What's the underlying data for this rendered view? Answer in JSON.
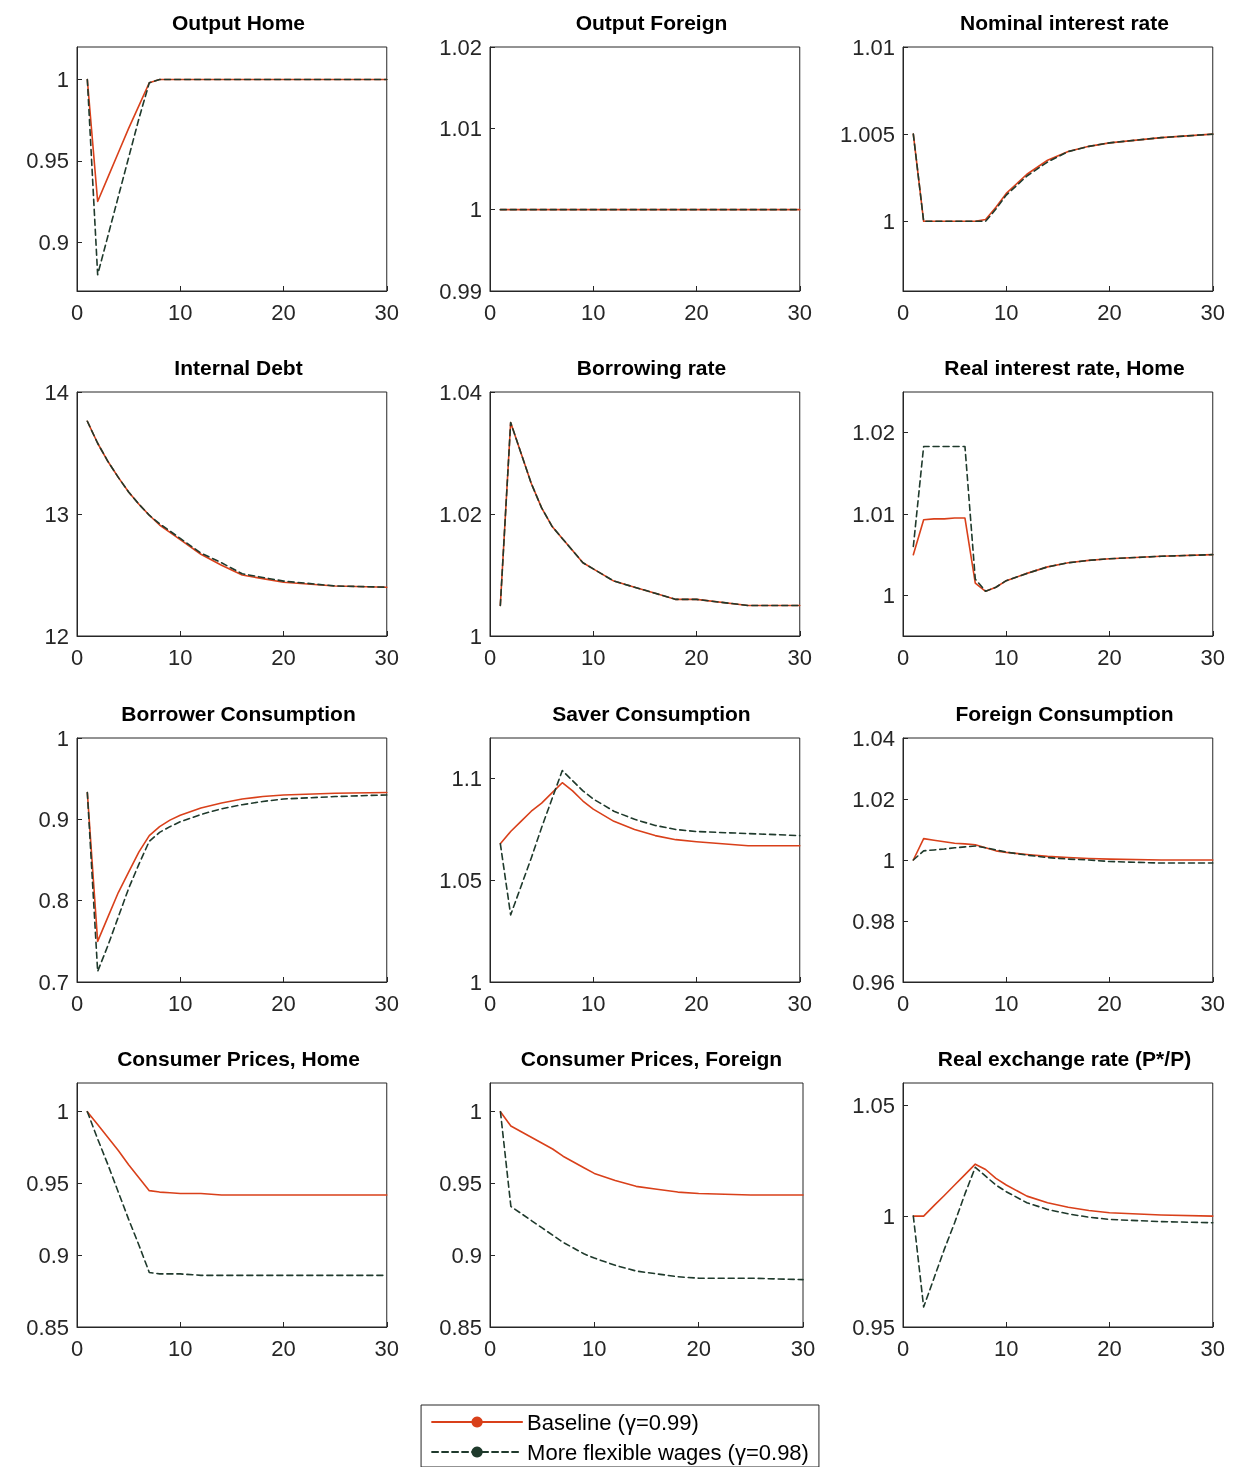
{
  "chart_data": [
    {
      "type": "line",
      "title": "Output Home",
      "x": [
        1,
        2,
        3,
        4,
        5,
        6,
        7,
        8,
        9,
        10,
        12,
        14,
        16,
        18,
        20,
        25,
        30
      ],
      "xlim": [
        0,
        30
      ],
      "xticks": [
        0,
        10,
        20,
        30
      ],
      "ylim": [
        0.87,
        1.02
      ],
      "yticks": [
        0.9,
        0.95,
        1
      ],
      "marker": "none",
      "series": [
        {
          "color": "#d9401a",
          "line_style": "solid",
          "values": [
            1,
            0.925,
            0.94,
            0.955,
            0.97,
            0.984,
            0.998,
            1,
            1,
            1,
            1,
            1,
            1,
            1,
            1,
            1,
            1
          ]
        },
        {
          "color": "#1f3a2c",
          "line_style": "dashed",
          "values": [
            1,
            0.88,
            0.904,
            0.928,
            0.952,
            0.976,
            0.998,
            1,
            1,
            1,
            1,
            1,
            1,
            1,
            1,
            1,
            1
          ]
        }
      ]
    },
    {
      "type": "line",
      "title": "Output Foreign",
      "x": [
        1,
        2,
        3,
        4,
        5,
        6,
        7,
        8,
        9,
        10,
        12,
        14,
        16,
        18,
        20,
        25,
        30
      ],
      "xlim": [
        0,
        30
      ],
      "xticks": [
        0,
        10,
        20,
        30
      ],
      "ylim": [
        0.99,
        1.02
      ],
      "yticks": [
        0.99,
        1,
        1.01,
        1.02
      ],
      "marker": "none",
      "series": [
        {
          "color": "#1f3a2c",
          "line_style": "dashed",
          "values": [
            1,
            1,
            1,
            1,
            1,
            1,
            1,
            1,
            1,
            1,
            1,
            1,
            1,
            1,
            1,
            1,
            1
          ]
        },
        {
          "color": "#d9401a",
          "line_style": "solid",
          "values": [
            1,
            1,
            1,
            1,
            1,
            1,
            1,
            1,
            1,
            1,
            1,
            1,
            1,
            1,
            1,
            1,
            1
          ]
        }
      ]
    },
    {
      "type": "line",
      "title": "Nominal interest rate",
      "x": [
        1,
        2,
        3,
        4,
        5,
        6,
        7,
        8,
        9,
        10,
        12,
        14,
        16,
        18,
        20,
        25,
        30
      ],
      "xlim": [
        0,
        30
      ],
      "xticks": [
        0,
        10,
        20,
        30
      ],
      "ylim": [
        0.996,
        1.01
      ],
      "yticks": [
        1,
        1.005,
        1.01
      ],
      "marker": "none",
      "series": [
        {
          "color": "#1f3a2c",
          "line_style": "dashed",
          "values": [
            1.005,
            1,
            1,
            1,
            1,
            1,
            1,
            1,
            1.0007,
            1.0015,
            1.0026,
            1.0034,
            1.004,
            1.0043,
            1.0045,
            1.0048,
            1.005
          ]
        },
        {
          "color": "#d9401a",
          "line_style": "solid",
          "values": [
            1.005,
            1,
            1,
            1,
            1,
            1,
            1,
            1.0001,
            1.0008,
            1.0016,
            1.0027,
            1.0035,
            1.004,
            1.0043,
            1.0045,
            1.0048,
            1.005
          ]
        }
      ]
    },
    {
      "type": "line",
      "title": "Internal Debt",
      "x": [
        1,
        2,
        3,
        4,
        5,
        6,
        7,
        8,
        9,
        10,
        12,
        14,
        16,
        18,
        20,
        25,
        30
      ],
      "xlim": [
        0,
        30
      ],
      "xticks": [
        0,
        10,
        20,
        30
      ],
      "ylim": [
        12,
        14
      ],
      "yticks": [
        12,
        13,
        14
      ],
      "marker": "none",
      "series": [
        {
          "color": "#1f3a2c",
          "line_style": "dashed",
          "values": [
            13.76,
            13.58,
            13.43,
            13.3,
            13.18,
            13.08,
            12.99,
            12.92,
            12.86,
            12.8,
            12.68,
            12.6,
            12.51,
            12.48,
            12.45,
            12.41,
            12.4
          ]
        },
        {
          "color": "#d9401a",
          "line_style": "solid",
          "values": [
            13.76,
            13.58,
            13.43,
            13.3,
            13.18,
            13.08,
            12.99,
            12.91,
            12.85,
            12.79,
            12.67,
            12.58,
            12.5,
            12.47,
            12.44,
            12.41,
            12.4
          ]
        }
      ]
    },
    {
      "type": "line",
      "title": "Borrowing rate",
      "x": [
        1,
        2,
        3,
        4,
        5,
        6,
        7,
        8,
        9,
        10,
        12,
        14,
        16,
        18,
        20,
        25,
        30
      ],
      "xlim": [
        0,
        30
      ],
      "xticks": [
        0,
        10,
        20,
        30
      ],
      "ylim": [
        1,
        1.04
      ],
      "yticks": [
        1,
        1.02,
        1.04
      ],
      "marker": "none",
      "series": [
        {
          "color": "#1f3a2c",
          "line_style": "dashed",
          "values": [
            1.005,
            1.035,
            1.03,
            1.025,
            1.021,
            1.018,
            1.016,
            1.014,
            1.012,
            1.011,
            1.009,
            1.008,
            1.007,
            1.006,
            1.006,
            1.005,
            1.005
          ]
        },
        {
          "color": "#d9401a",
          "line_style": "solid",
          "values": [
            1.005,
            1.035,
            1.03,
            1.025,
            1.021,
            1.018,
            1.016,
            1.014,
            1.012,
            1.011,
            1.009,
            1.008,
            1.007,
            1.006,
            1.006,
            1.005,
            1.005
          ]
        }
      ]
    },
    {
      "type": "line",
      "title": "Real interest rate, Home",
      "x": [
        1,
        2,
        3,
        4,
        5,
        6,
        7,
        8,
        9,
        10,
        12,
        14,
        16,
        18,
        20,
        25,
        30
      ],
      "xlim": [
        0,
        30
      ],
      "xticks": [
        0,
        10,
        20,
        30
      ],
      "ylim": [
        0.995,
        1.025
      ],
      "yticks": [
        1,
        1.01,
        1.02
      ],
      "marker": "none",
      "series": [
        {
          "color": "#1f3a2c",
          "line_style": "dashed",
          "values": [
            1.006,
            1.0183,
            1.0183,
            1.0183,
            1.0183,
            1.0183,
            1.002,
            1.0005,
            1.001,
            1.0018,
            1.0027,
            1.0035,
            1.004,
            1.0043,
            1.0045,
            1.0048,
            1.005
          ]
        },
        {
          "color": "#d9401a",
          "line_style": "solid",
          "values": [
            1.005,
            1.0093,
            1.0094,
            1.0094,
            1.0095,
            1.0095,
            1.0015,
            1.0005,
            1.001,
            1.0018,
            1.0027,
            1.0035,
            1.004,
            1.0043,
            1.0045,
            1.0048,
            1.005
          ]
        }
      ]
    },
    {
      "type": "line",
      "title": "Borrower Consumption",
      "x": [
        1,
        2,
        3,
        4,
        5,
        6,
        7,
        8,
        9,
        10,
        12,
        14,
        16,
        18,
        20,
        25,
        30
      ],
      "xlim": [
        0,
        30
      ],
      "xticks": [
        0,
        10,
        20,
        30
      ],
      "ylim": [
        0.7,
        1
      ],
      "yticks": [
        0.7,
        0.8,
        0.9,
        1
      ],
      "marker": "none",
      "series": [
        {
          "color": "#1f3a2c",
          "line_style": "dashed",
          "values": [
            0.933,
            0.713,
            0.745,
            0.78,
            0.815,
            0.845,
            0.873,
            0.884,
            0.891,
            0.897,
            0.906,
            0.913,
            0.918,
            0.922,
            0.925,
            0.928,
            0.93
          ]
        },
        {
          "color": "#d9401a",
          "line_style": "solid",
          "values": [
            0.933,
            0.75,
            0.78,
            0.81,
            0.835,
            0.86,
            0.88,
            0.891,
            0.899,
            0.905,
            0.914,
            0.92,
            0.925,
            0.928,
            0.93,
            0.932,
            0.933
          ]
        }
      ]
    },
    {
      "type": "line",
      "title": "Saver Consumption",
      "x": [
        1,
        2,
        3,
        4,
        5,
        6,
        7,
        8,
        9,
        10,
        12,
        14,
        16,
        18,
        20,
        25,
        30
      ],
      "xlim": [
        0,
        30
      ],
      "xticks": [
        0,
        10,
        20,
        30
      ],
      "ylim": [
        1,
        1.12
      ],
      "yticks": [
        1,
        1.05,
        1.1
      ],
      "marker": "none",
      "series": [
        {
          "color": "#1f3a2c",
          "line_style": "dashed",
          "values": [
            1.068,
            1.033,
            1.047,
            1.061,
            1.076,
            1.09,
            1.104,
            1.099,
            1.094,
            1.09,
            1.084,
            1.08,
            1.077,
            1.075,
            1.074,
            1.073,
            1.072
          ]
        },
        {
          "color": "#d9401a",
          "line_style": "solid",
          "values": [
            1.068,
            1.074,
            1.079,
            1.084,
            1.088,
            1.093,
            1.098,
            1.094,
            1.089,
            1.085,
            1.079,
            1.075,
            1.072,
            1.07,
            1.069,
            1.067,
            1.067
          ]
        }
      ]
    },
    {
      "type": "line",
      "title": "Foreign Consumption",
      "x": [
        1,
        2,
        3,
        4,
        5,
        6,
        7,
        8,
        9,
        10,
        12,
        14,
        16,
        18,
        20,
        25,
        30
      ],
      "xlim": [
        0,
        30
      ],
      "xticks": [
        0,
        10,
        20,
        30
      ],
      "ylim": [
        0.96,
        1.04
      ],
      "yticks": [
        0.96,
        0.98,
        1,
        1.02,
        1.04
      ],
      "marker": "none",
      "series": [
        {
          "color": "#1f3a2c",
          "line_style": "dashed",
          "values": [
            1,
            1.003,
            1.0033,
            1.0036,
            1.004,
            1.0043,
            1.0046,
            1.004,
            1.0033,
            1.0026,
            1.0016,
            1.0008,
            1.0003,
            1,
            0.9995,
            0.999,
            0.999
          ]
        },
        {
          "color": "#d9401a",
          "line_style": "solid",
          "values": [
            1,
            1.007,
            1.0065,
            1.006,
            1.0055,
            1.0053,
            1.005,
            1.004,
            1.003,
            1.0025,
            1.0018,
            1.0012,
            1.0008,
            1.0005,
            1.0003,
            1,
            1
          ]
        }
      ]
    },
    {
      "type": "line",
      "title": "Consumer Prices, Home",
      "x": [
        1,
        2,
        3,
        4,
        5,
        6,
        7,
        8,
        9,
        10,
        12,
        14,
        16,
        18,
        20,
        25,
        30
      ],
      "xlim": [
        0,
        30
      ],
      "xticks": [
        0,
        10,
        20,
        30
      ],
      "ylim": [
        0.85,
        1.02
      ],
      "yticks": [
        0.85,
        0.9,
        0.95,
        1
      ],
      "marker": "none",
      "series": [
        {
          "color": "#1f3a2c",
          "line_style": "dashed",
          "values": [
            1,
            0.981,
            0.963,
            0.944,
            0.925,
            0.907,
            0.888,
            0.887,
            0.887,
            0.887,
            0.886,
            0.886,
            0.886,
            0.886,
            0.886,
            0.886,
            0.886
          ]
        },
        {
          "color": "#d9401a",
          "line_style": "solid",
          "values": [
            1,
            0.991,
            0.982,
            0.973,
            0.963,
            0.954,
            0.945,
            0.944,
            0.9435,
            0.943,
            0.943,
            0.942,
            0.942,
            0.942,
            0.942,
            0.942,
            0.942
          ]
        }
      ]
    },
    {
      "type": "line",
      "title": "Consumer Prices, Foreign",
      "x": [
        1,
        2,
        3,
        4,
        5,
        6,
        7,
        8,
        9,
        10,
        12,
        14,
        16,
        18,
        20,
        25,
        30
      ],
      "xlim": [
        0,
        30
      ],
      "xticks": [
        0,
        10,
        20,
        30
      ],
      "ylim": [
        0.85,
        1.02
      ],
      "yticks": [
        0.85,
        0.9,
        0.95,
        1
      ],
      "marker": "none",
      "legend": "bottom",
      "series": [
        {
          "name": "Baseline (γ=0.99)",
          "color": "#d9401a",
          "line_style": "solid",
          "values": [
            1,
            0.99,
            0.986,
            0.982,
            0.978,
            0.974,
            0.969,
            0.965,
            0.961,
            0.957,
            0.952,
            0.948,
            0.946,
            0.944,
            0.943,
            0.942,
            0.942
          ]
        },
        {
          "name": "More flexible wages (γ=0.98)",
          "color": "#1f3a2c",
          "line_style": "dashed",
          "values": [
            1,
            0.934,
            0.929,
            0.924,
            0.919,
            0.914,
            0.909,
            0.905,
            0.901,
            0.898,
            0.893,
            0.889,
            0.887,
            0.885,
            0.884,
            0.884,
            0.883
          ]
        }
      ]
    },
    {
      "type": "line",
      "title": "Real exchange rate (P*/P)",
      "x": [
        1,
        2,
        3,
        4,
        5,
        6,
        7,
        8,
        9,
        10,
        12,
        14,
        16,
        18,
        20,
        25,
        30
      ],
      "xlim": [
        0,
        30
      ],
      "xticks": [
        0,
        10,
        20,
        30
      ],
      "ylim": [
        0.95,
        1.06
      ],
      "yticks": [
        0.95,
        1,
        1.05
      ],
      "marker": "none",
      "series": [
        {
          "color": "#1f3a2c",
          "line_style": "dashed",
          "values": [
            1,
            0.959,
            0.972,
            0.985,
            0.997,
            1.01,
            1.022,
            1.018,
            1.014,
            1.011,
            1.006,
            1.003,
            1.001,
            0.9995,
            0.9985,
            0.9975,
            0.997
          ]
        },
        {
          "color": "#d9401a",
          "line_style": "solid",
          "values": [
            1,
            1,
            1.0047,
            1.0093,
            1.014,
            1.0187,
            1.0234,
            1.021,
            1.017,
            1.014,
            1.009,
            1.006,
            1.004,
            1.0025,
            1.0015,
            1.0005,
            1
          ]
        }
      ]
    }
  ]
}
